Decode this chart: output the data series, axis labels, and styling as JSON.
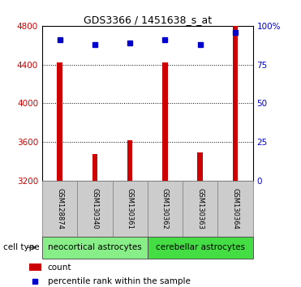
{
  "title": "GDS3366 / 1451638_s_at",
  "samples": [
    "GSM128874",
    "GSM130340",
    "GSM130361",
    "GSM130362",
    "GSM130363",
    "GSM130364"
  ],
  "counts": [
    4420,
    3480,
    3620,
    4420,
    3490,
    4800
  ],
  "percentiles": [
    91,
    88,
    89,
    91,
    88,
    96
  ],
  "ylim_left": [
    3200,
    4800
  ],
  "ylim_right": [
    0,
    100
  ],
  "yticks_left": [
    3200,
    3600,
    4000,
    4400,
    4800
  ],
  "yticks_right": [
    0,
    25,
    50,
    75,
    100
  ],
  "ytick_labels_right": [
    "0",
    "25",
    "50",
    "75",
    "100%"
  ],
  "bar_color": "#cc0000",
  "dot_color": "#0000cc",
  "bar_bottom": 3200,
  "bar_width": 0.15,
  "groups": [
    {
      "label": "neocortical astrocytes",
      "indices": [
        0,
        1,
        2
      ],
      "color": "#88ee88"
    },
    {
      "label": "cerebellar astrocytes",
      "indices": [
        3,
        4,
        5
      ],
      "color": "#44dd44"
    }
  ],
  "cell_type_label": "cell type",
  "legend_count_label": "count",
  "legend_percentile_label": "percentile rank within the sample",
  "bg_color": "#ffffff",
  "plot_bg": "#ffffff",
  "tick_label_color_left": "#cc0000",
  "tick_label_color_right": "#0000cc",
  "grid_color": "#000000",
  "sample_bg": "#cccccc",
  "title_fontsize": 9,
  "tick_fontsize": 7.5,
  "sample_fontsize": 6,
  "group_fontsize": 7.5,
  "legend_fontsize": 7.5
}
